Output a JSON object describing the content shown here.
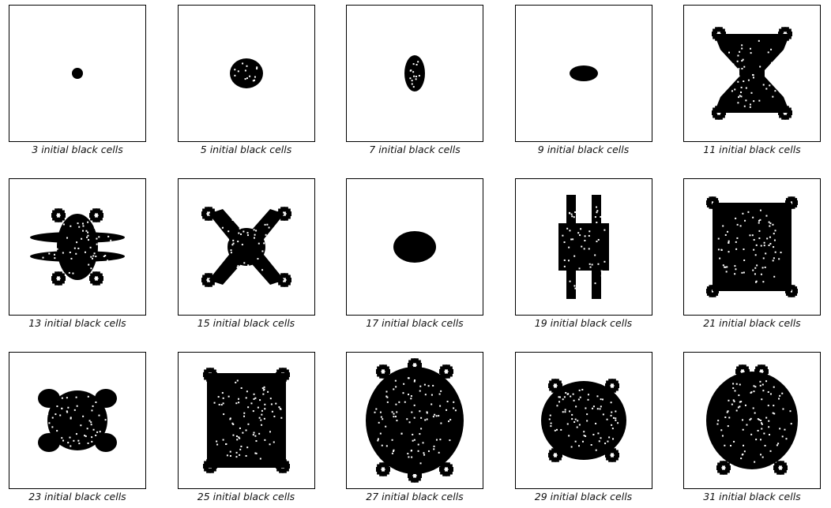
{
  "panels": [
    {
      "caption": "3 initial black cells",
      "shape": {
        "rx": 7,
        "ry": 7,
        "style": "solid",
        "cy": 0
      }
    },
    {
      "caption": "5 initial black cells",
      "shape": {
        "rx": 21,
        "ry": 19,
        "style": "dotted-oval",
        "cy": 0
      }
    },
    {
      "caption": "7 initial black cells",
      "shape": {
        "rx": 13,
        "ry": 23,
        "style": "dotted-oval",
        "cy": 0
      }
    },
    {
      "caption": "9 initial black cells",
      "shape": {
        "rx": 18,
        "ry": 10,
        "style": "solid",
        "cy": 0
      }
    },
    {
      "caption": "11 initial black cells",
      "shape": {
        "style": "hourglass"
      }
    },
    {
      "caption": "13 initial black cells",
      "shape": {
        "style": "horizontal-star"
      }
    },
    {
      "caption": "15 initial black cells",
      "shape": {
        "style": "x-shape"
      }
    },
    {
      "caption": "17 initial black cells",
      "shape": {
        "rx": 27,
        "ry": 20,
        "style": "solid",
        "cy": 0
      }
    },
    {
      "caption": "19 initial black cells",
      "shape": {
        "style": "vertical-pillars"
      }
    },
    {
      "caption": "21 initial black cells",
      "shape": {
        "style": "square-fractal"
      }
    },
    {
      "caption": "23 initial black cells",
      "shape": {
        "style": "small-x"
      }
    },
    {
      "caption": "25 initial black cells",
      "shape": {
        "style": "square-fractal-large"
      }
    },
    {
      "caption": "27 initial black cells",
      "shape": {
        "style": "round-fractal"
      }
    },
    {
      "caption": "29 initial black cells",
      "shape": {
        "style": "round-fractal-small"
      }
    },
    {
      "caption": "31 initial black cells",
      "shape": {
        "style": "tall-fractal"
      }
    }
  ]
}
